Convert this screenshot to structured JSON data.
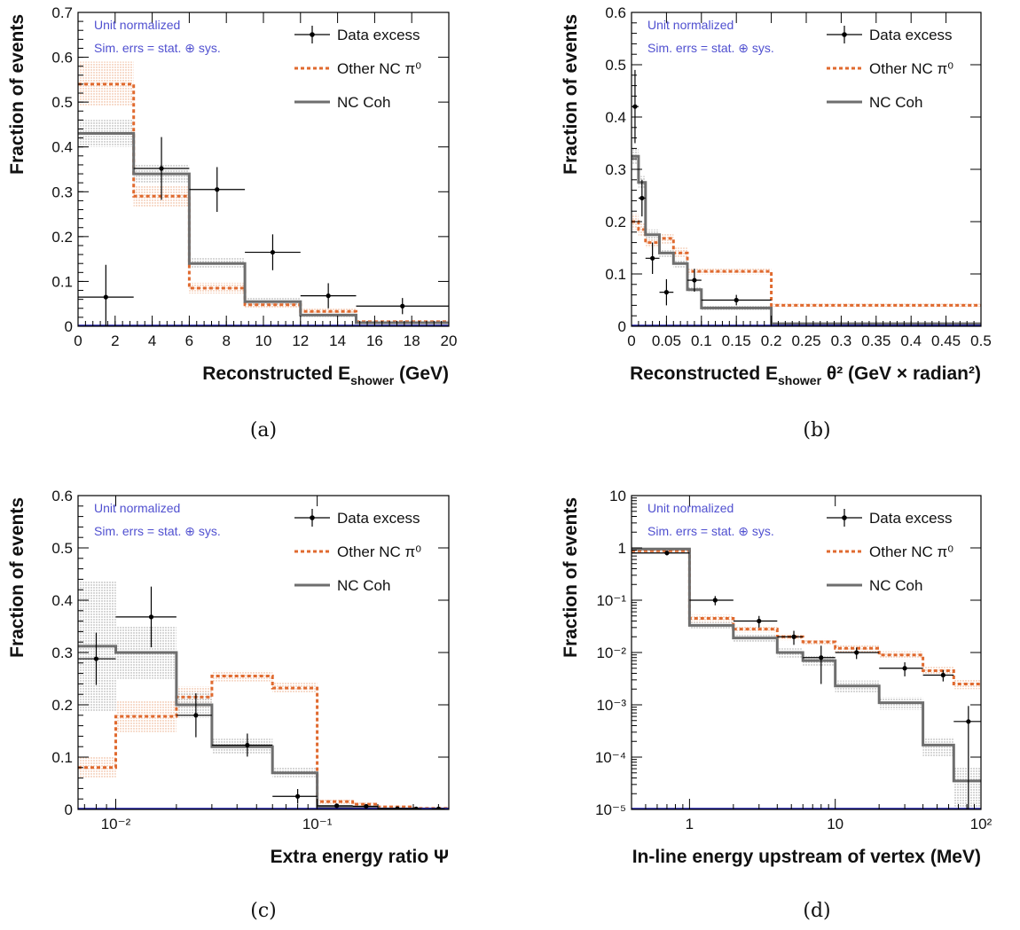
{
  "colors": {
    "data": "#000000",
    "other_nc_pi0": "#e06a2f",
    "other_band": "#f3c4a8",
    "nc_coh": "#6e6e6e",
    "coh_band": "#c8c8c8",
    "note": "#5050d0"
  },
  "legend": {
    "data_label": "Data excess",
    "other_label": "Other NC π⁰",
    "coh_label": "NC Coh"
  },
  "notes": {
    "line1": "Unit normalized",
    "line2": "Sim. errs = stat. ⊕ sys."
  },
  "chart_data": [
    {
      "id": "a",
      "type": "histogram",
      "caption": "(a)",
      "xlabel": "Reconstructed E_shower (GeV)",
      "ylabel": "Fraction of events",
      "xlim": [
        0,
        20
      ],
      "ylim": [
        0,
        0.7
      ],
      "xscale": "linear",
      "yscale": "linear",
      "xticks": [
        0,
        2,
        4,
        6,
        8,
        10,
        12,
        14,
        16,
        18,
        20
      ],
      "yticks": [
        0,
        0.1,
        0.2,
        0.3,
        0.4,
        0.5,
        0.6,
        0.7
      ],
      "bin_edges": [
        0,
        3,
        6,
        9,
        12,
        15,
        20
      ],
      "series": [
        {
          "name": "Other NC π⁰",
          "values": [
            0.54,
            0.29,
            0.085,
            0.048,
            0.033,
            0.01
          ],
          "band": [
            0.05,
            0.025,
            0.012,
            0.008,
            0.006,
            0.003
          ]
        },
        {
          "name": "NC Coh",
          "values": [
            0.43,
            0.34,
            0.14,
            0.055,
            0.025,
            0.008
          ],
          "band": [
            0.03,
            0.02,
            0.012,
            0.008,
            0.005,
            0.003
          ]
        }
      ],
      "data_points": [
        {
          "x": 1.5,
          "xerr": 1.5,
          "y": 0.065,
          "yerr": 0.072
        },
        {
          "x": 4.5,
          "xerr": 1.5,
          "y": 0.352,
          "yerr": 0.07
        },
        {
          "x": 7.5,
          "xerr": 1.5,
          "y": 0.305,
          "yerr": 0.05
        },
        {
          "x": 10.5,
          "xerr": 1.5,
          "y": 0.165,
          "yerr": 0.04
        },
        {
          "x": 13.5,
          "xerr": 1.5,
          "y": 0.068,
          "yerr": 0.028
        },
        {
          "x": 17.5,
          "xerr": 2.5,
          "y": 0.045,
          "yerr": 0.018
        }
      ]
    },
    {
      "id": "b",
      "type": "histogram",
      "caption": "(b)",
      "xlabel": "Reconstructed E_shower θ² (GeV × radian²)",
      "ylabel": "Fraction of events",
      "xlim": [
        0,
        0.5
      ],
      "ylim": [
        0,
        0.6
      ],
      "xscale": "linear",
      "yscale": "linear",
      "xticks": [
        0,
        0.05,
        0.1,
        0.15,
        0.2,
        0.25,
        0.3,
        0.35,
        0.4,
        0.45,
        0.5
      ],
      "yticks": [
        0,
        0.1,
        0.2,
        0.3,
        0.4,
        0.5,
        0.6
      ],
      "bin_edges": [
        0,
        0.01,
        0.02,
        0.04,
        0.06,
        0.08,
        0.1,
        0.2,
        0.5
      ],
      "series": [
        {
          "name": "Other NC π⁰",
          "values": [
            0.2,
            0.185,
            0.16,
            0.168,
            0.14,
            0.105,
            0.105,
            0.04
          ],
          "band": [
            0.015,
            0.012,
            0.01,
            0.01,
            0.01,
            0.006,
            0.006,
            0.003
          ]
        },
        {
          "name": "NC Coh",
          "values": [
            0.325,
            0.275,
            0.175,
            0.14,
            0.12,
            0.07,
            0.035,
            0.005
          ],
          "band": [
            0.015,
            0.012,
            0.01,
            0.008,
            0.008,
            0.006,
            0.004,
            0.002
          ]
        }
      ],
      "data_points": [
        {
          "x": 0.005,
          "xerr": 0.005,
          "y": 0.42,
          "yerr": 0.07
        },
        {
          "x": 0.015,
          "xerr": 0.005,
          "y": 0.245,
          "yerr": 0.035
        },
        {
          "x": 0.03,
          "xerr": 0.01,
          "y": 0.13,
          "yerr": 0.03
        },
        {
          "x": 0.05,
          "xerr": 0.01,
          "y": 0.065,
          "yerr": 0.025
        },
        {
          "x": 0.09,
          "xerr": 0.01,
          "y": 0.088,
          "yerr": 0.022
        },
        {
          "x": 0.15,
          "xerr": 0.05,
          "y": 0.05,
          "yerr": 0.01
        }
      ]
    },
    {
      "id": "c",
      "type": "histogram",
      "caption": "(c)",
      "xlabel": "Extra energy ratio Ψ",
      "ylabel": "Fraction of events",
      "xlim": [
        0.0065,
        0.45
      ],
      "ylim": [
        0,
        0.6
      ],
      "xscale": "log",
      "yscale": "linear",
      "xticks": [
        0.01,
        0.1
      ],
      "xtick_labels": [
        "10⁻²",
        "10⁻¹"
      ],
      "yticks": [
        0,
        0.1,
        0.2,
        0.3,
        0.4,
        0.5,
        0.6
      ],
      "bin_edges": [
        0.0065,
        0.01,
        0.02,
        0.03,
        0.06,
        0.1,
        0.15,
        0.2,
        0.3,
        0.45
      ],
      "series": [
        {
          "name": "Other NC π⁰",
          "values": [
            0.08,
            0.178,
            0.215,
            0.255,
            0.232,
            0.015,
            0.01,
            0.005,
            0.002
          ],
          "band": [
            0.02,
            0.03,
            0.02,
            0.01,
            0.01,
            0.004,
            0.003,
            0.002,
            0.001
          ]
        },
        {
          "name": "NC Coh",
          "values": [
            0.312,
            0.3,
            0.2,
            0.12,
            0.07,
            0.005,
            0.003,
            0.001,
            0.001
          ],
          "band": [
            0.125,
            0.05,
            0.025,
            0.015,
            0.01,
            0.003,
            0.002,
            0.001,
            0.001
          ]
        }
      ],
      "data_points": [
        {
          "x": 0.008,
          "xlo": 0.0065,
          "xhi": 0.01,
          "y": 0.288,
          "yerr": 0.05
        },
        {
          "x": 0.015,
          "xlo": 0.01,
          "xhi": 0.02,
          "y": 0.368,
          "yerr": 0.058
        },
        {
          "x": 0.025,
          "xlo": 0.02,
          "xhi": 0.03,
          "y": 0.18,
          "yerr": 0.042
        },
        {
          "x": 0.045,
          "xlo": 0.03,
          "xhi": 0.06,
          "y": 0.123,
          "yerr": 0.022
        },
        {
          "x": 0.08,
          "xlo": 0.06,
          "xhi": 0.1,
          "y": 0.025,
          "yerr": 0.014
        },
        {
          "x": 0.125,
          "xlo": 0.1,
          "xhi": 0.15,
          "y": 0.007,
          "yerr": 0.003
        },
        {
          "x": 0.175,
          "xlo": 0.15,
          "xhi": 0.2,
          "y": 0.006,
          "yerr": 0.003
        },
        {
          "x": 0.25,
          "xlo": 0.2,
          "xhi": 0.3,
          "y": 0.0015,
          "yerr": 0.001
        },
        {
          "x": 0.31,
          "xlo": 0.3,
          "xhi": 0.33,
          "y": 0.001,
          "yerr": 0.001
        },
        {
          "x": 0.4,
          "xlo": 0.37,
          "xhi": 0.43,
          "y": 0.001,
          "yerr": 0.001
        }
      ]
    },
    {
      "id": "d",
      "type": "histogram",
      "caption": "(d)",
      "xlabel": "In-line energy upstream of vertex (MeV)",
      "ylabel": "Fraction of events",
      "xlim": [
        0.4,
        100
      ],
      "ylim": [
        1e-05,
        10
      ],
      "xscale": "log",
      "yscale": "log",
      "xticks": [
        1,
        10,
        100
      ],
      "xtick_labels": [
        "1",
        "10",
        "10²"
      ],
      "yticks": [
        1e-05,
        0.0001,
        0.001,
        0.01,
        0.1,
        1,
        10
      ],
      "ytick_labels": [
        "10⁻⁵",
        "10⁻⁴",
        "10⁻³",
        "10⁻²",
        "10⁻¹",
        "1",
        "10"
      ],
      "bin_edges": [
        0.4,
        1,
        2,
        4,
        6,
        10,
        20,
        40,
        65,
        100
      ],
      "series": [
        {
          "name": "Other NC π⁰",
          "values": [
            0.88,
            0.045,
            0.028,
            0.02,
            0.016,
            0.012,
            0.009,
            0.0045,
            0.0025
          ],
          "band": [
            0.05,
            0.008,
            0.004,
            0.003,
            0.002,
            0.002,
            0.0015,
            0.0008,
            0.0005
          ]
        },
        {
          "name": "NC Coh",
          "values": [
            0.95,
            0.033,
            0.019,
            0.01,
            0.007,
            0.0023,
            0.0011,
            0.00017,
            3.5e-05
          ],
          "band": [
            0.05,
            0.005,
            0.003,
            0.002,
            0.0015,
            0.0006,
            0.0003,
            7e-05,
            3e-05
          ]
        }
      ],
      "data_points": [
        {
          "x": 0.7,
          "xlo": 0.4,
          "xhi": 1,
          "y": 0.8,
          "yerr": 0.08
        },
        {
          "x": 1.5,
          "xlo": 1,
          "xhi": 2,
          "y": 0.1,
          "yerr": 0.02
        },
        {
          "x": 3,
          "xlo": 2,
          "xhi": 4,
          "y": 0.04,
          "yerr": 0.01
        },
        {
          "x": 5.2,
          "xlo": 4,
          "xhi": 6,
          "y": 0.02,
          "yerr": 0.006
        },
        {
          "x": 8,
          "xlo": 6,
          "xhi": 10,
          "y": 0.008,
          "yerr": 0.0055
        },
        {
          "x": 14,
          "xlo": 10,
          "xhi": 20,
          "y": 0.01,
          "yerr": 0.0025
        },
        {
          "x": 30,
          "xlo": 20,
          "xhi": 40,
          "y": 0.005,
          "yerr": 0.0015
        },
        {
          "x": 55,
          "xlo": 40,
          "xhi": 65,
          "y": 0.0037,
          "yerr": 0.0009
        },
        {
          "x": 82,
          "xlo": 65,
          "xhi": 100,
          "y": 0.00048,
          "yerr": 0.00047
        }
      ]
    }
  ]
}
